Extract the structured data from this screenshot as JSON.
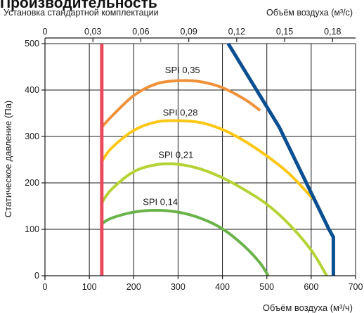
{
  "header": {
    "title": "Производительность",
    "subtitle": "Установка стандартной комплектации",
    "top_axis_label": "Объём воздуха (м³/с)"
  },
  "chart_data": {
    "type": "line",
    "xlabel": "Объём воздуха (м³/ч)",
    "ylabel": "Статическое давление (Па)",
    "x2label": "Объём воздуха (м³/с)",
    "xlim": [
      0,
      700
    ],
    "ylim": [
      0,
      500
    ],
    "x2lim": [
      0,
      0.1944
    ],
    "x_ticks": [
      "0",
      "100",
      "200",
      "300",
      "400",
      "500",
      "600",
      "700"
    ],
    "y_ticks": [
      "0",
      "100",
      "200",
      "300",
      "400",
      "500"
    ],
    "x2_ticks": [
      "0",
      "0,03",
      "0,06",
      "0,09",
      "0,12",
      "0,15",
      "0,18"
    ],
    "grid": true,
    "series": [
      {
        "name": "SPI 0,35",
        "color": "#f0913a",
        "label_at": [
          310,
          436
        ],
        "points": [
          [
            128,
            320
          ],
          [
            150,
            343
          ],
          [
            200,
            388
          ],
          [
            250,
            413
          ],
          [
            300,
            420
          ],
          [
            350,
            418
          ],
          [
            400,
            405
          ],
          [
            450,
            380
          ],
          [
            485,
            356
          ]
        ]
      },
      {
        "name": "SPI 0,28",
        "color": "#fcc715",
        "label_at": [
          305,
          345
        ],
        "points": [
          [
            128,
            246
          ],
          [
            150,
            275
          ],
          [
            200,
            313
          ],
          [
            250,
            331
          ],
          [
            300,
            334
          ],
          [
            350,
            330
          ],
          [
            400,
            315
          ],
          [
            450,
            290
          ],
          [
            500,
            258
          ],
          [
            550,
            220
          ],
          [
            605,
            165
          ]
        ]
      },
      {
        "name": "SPI 0,21",
        "color": "#b4d334",
        "label_at": [
          295,
          254
        ],
        "points": [
          [
            128,
            157
          ],
          [
            150,
            186
          ],
          [
            200,
            224
          ],
          [
            250,
            239
          ],
          [
            300,
            240
          ],
          [
            350,
            230
          ],
          [
            400,
            211
          ],
          [
            450,
            185
          ],
          [
            500,
            154
          ],
          [
            550,
            111
          ],
          [
            600,
            55
          ],
          [
            635,
            0
          ]
        ]
      },
      {
        "name": "SPI 0,14",
        "color": "#6ab34a",
        "label_at": [
          260,
          152
        ],
        "points": [
          [
            128,
            112
          ],
          [
            150,
            124
          ],
          [
            200,
            137
          ],
          [
            250,
            141
          ],
          [
            300,
            137
          ],
          [
            350,
            124
          ],
          [
            400,
            101
          ],
          [
            450,
            63
          ],
          [
            485,
            27
          ],
          [
            503,
            0
          ]
        ]
      },
      {
        "name": "",
        "color": "#ea4a5e",
        "points": [
          [
            128,
            500
          ],
          [
            128,
            0
          ]
        ]
      },
      {
        "name": "",
        "color": "#0b4f93",
        "points": [
          [
            413,
            500
          ],
          [
            528,
            320
          ],
          [
            640,
            100
          ],
          [
            650,
            83
          ],
          [
            650,
            0
          ]
        ]
      }
    ]
  }
}
